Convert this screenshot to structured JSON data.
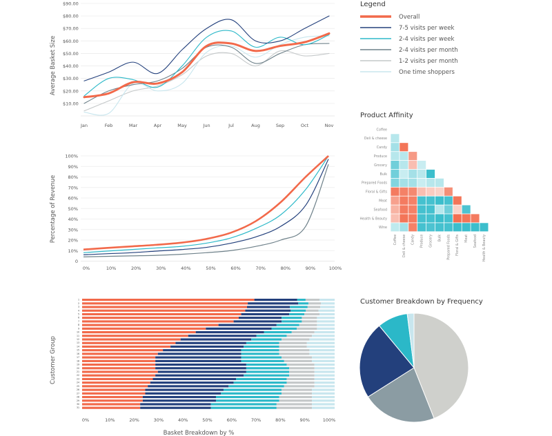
{
  "chart_data": [
    {
      "type": "line",
      "ylabel": "Average Basket Size",
      "categories": [
        "Jan",
        "Feb",
        "Mar",
        "Apr",
        "May",
        "Jun",
        "Jul",
        "Aug",
        "Sep",
        "Oct",
        "Nov"
      ],
      "ytick_labels": [
        "$10.00",
        "$20.00",
        "$30.00",
        "$40.00",
        "$50.00",
        "$60.00",
        "$70.00",
        "$80.00",
        "$90.00"
      ],
      "ylim": [
        0,
        90
      ],
      "grid": "horizontal",
      "legend_title": "Legend",
      "legend_position": "right",
      "series": [
        {
          "name": "Overall",
          "color": "#f2694a",
          "values": [
            15,
            18,
            27,
            26,
            35,
            56,
            58,
            52,
            56,
            59,
            66
          ]
        },
        {
          "name": "7-5 visits per week",
          "color": "#23407c",
          "values": [
            28,
            35,
            43,
            34,
            53,
            70,
            77,
            60,
            60,
            70,
            80
          ]
        },
        {
          "name": "2-4 visits per week",
          "color": "#2bb8c8",
          "values": [
            16,
            30,
            29,
            23,
            40,
            63,
            68,
            55,
            63,
            57,
            65
          ]
        },
        {
          "name": "2-4 visits per month",
          "color": "#6d8089",
          "values": [
            10,
            20,
            25,
            28,
            38,
            55,
            55,
            42,
            50,
            57,
            58
          ]
        },
        {
          "name": "1-2 visits per month",
          "color": "#c4c8c9",
          "values": [
            4,
            12,
            20,
            24,
            33,
            48,
            50,
            40,
            52,
            48,
            50
          ]
        },
        {
          "name": "One time shoppers",
          "color": "#c8e6ee",
          "values": [
            3,
            2,
            26,
            20,
            26,
            51,
            56,
            47,
            57,
            63,
            64
          ]
        }
      ]
    },
    {
      "type": "line",
      "ylabel": "Percentage of Revenue",
      "x": [
        0,
        10,
        20,
        30,
        40,
        50,
        60,
        70,
        80,
        90,
        100
      ],
      "xtick_labels": [
        "0%",
        "10%",
        "20%",
        "30%",
        "40%",
        "50%",
        "60%",
        "70%",
        "80%",
        "90%",
        "100%"
      ],
      "ytick_labels": [
        "0",
        "10%",
        "20%",
        "30%",
        "40%",
        "50%",
        "60%",
        "70%",
        "80%",
        "90%",
        "100%"
      ],
      "ylim": [
        0,
        100
      ],
      "grid": "horizontal",
      "series": [
        {
          "color": "#f2694a",
          "values": [
            11,
            12.5,
            14,
            15.5,
            17.5,
            21,
            27,
            38,
            56,
            80,
            100
          ]
        },
        {
          "color": "#2bb8c8",
          "values": [
            8,
            9.5,
            11,
            12.5,
            14,
            17,
            22,
            31,
            44,
            68,
            100
          ]
        },
        {
          "color": "#23407c",
          "values": [
            6,
            7,
            8,
            9.5,
            11,
            13,
            17,
            23,
            33,
            53,
            97
          ]
        },
        {
          "color": "#6d8089",
          "values": [
            4,
            4.5,
            5,
            5.5,
            6.5,
            8,
            10,
            14,
            20,
            33,
            92
          ]
        }
      ]
    },
    {
      "type": "heatmap",
      "title": "Product Affinity",
      "labels": [
        "Coffee",
        "Deli & cheese",
        "Candy",
        "Produce",
        "Grocery",
        "Bulk",
        "Prepared Foods",
        "Floral & Gifts",
        "Meat",
        "Seafood",
        "Health & Beauty",
        "Wine"
      ],
      "bottom_labels": [
        "Coffee",
        "Deli & cheese",
        "Candy",
        "Produce",
        "Grocery",
        "Bulk",
        "Prepared Foods",
        "Floral & Gifts",
        "Meat",
        "Seafood",
        "Health & Beauty"
      ],
      "values": [
        [],
        [
          0.2
        ],
        [
          0.3,
          -0.9
        ],
        [
          0.2,
          0.2,
          -0.6
        ],
        [
          0.6,
          0.2,
          -0.3,
          0.1
        ],
        [
          0.6,
          0.1,
          0.3,
          0.2,
          0.9
        ],
        [
          0.5,
          0.3,
          0.3,
          0.1,
          0.2,
          0.2
        ],
        [
          -0.85,
          -0.8,
          -0.75,
          -0.3,
          -0.2,
          -0.15,
          -0.7
        ],
        [
          -0.55,
          -0.85,
          -0.8,
          0.85,
          0.85,
          0.9,
          0.85,
          -0.9
        ],
        [
          -0.4,
          -0.85,
          -0.8,
          0.85,
          0.85,
          0.2,
          0.6,
          -0.15,
          0.8
        ],
        [
          -0.3,
          -0.9,
          -0.85,
          0.85,
          0.85,
          0.9,
          0.85,
          -0.95,
          -0.9,
          -0.85
        ],
        [
          0.15,
          0.3,
          -0.8,
          0.85,
          0.8,
          0.85,
          0.85,
          0.9,
          0.9,
          0.9,
          0.9
        ]
      ]
    },
    {
      "type": "bar",
      "orientation": "horizontal",
      "stacked": true,
      "ylabel": "Customer Group",
      "xlabel": "Basket Breakdown by %",
      "xtick_labels": [
        "0%",
        "10%",
        "20%",
        "30%",
        "40%",
        "50%",
        "60%",
        "70%",
        "80%",
        "90%",
        "100%"
      ],
      "xlim": [
        0,
        100
      ],
      "categories": [
        "1",
        "2",
        "3",
        "4",
        "5",
        "6",
        "7",
        "8",
        "9",
        "10",
        "11",
        "12",
        "13",
        "14",
        "15",
        "16",
        "17",
        "18",
        "19",
        "20",
        "21",
        "22",
        "23",
        "24",
        "25",
        "26",
        "27",
        "28",
        "29",
        "30",
        "31"
      ],
      "segment_colors": [
        "#f2694a",
        "#23407c",
        "#2bb8c8",
        "#c4c8c9",
        "#c8e6ee"
      ],
      "rows": [
        [
          68.2,
          17,
          3.3,
          5.5,
          6
        ],
        [
          65.6,
          20,
          4,
          5,
          5.4
        ],
        [
          65.3,
          17,
          7,
          5,
          5.7
        ],
        [
          64.6,
          18,
          6,
          5,
          6.4
        ],
        [
          63,
          19,
          6,
          6,
          6
        ],
        [
          62,
          17,
          8,
          6,
          7
        ],
        [
          60,
          19,
          8,
          6,
          7
        ],
        [
          54,
          23,
          9,
          7,
          7
        ],
        [
          49,
          26,
          10,
          8,
          7
        ],
        [
          45,
          27,
          11,
          9,
          8
        ],
        [
          42,
          27,
          12,
          10,
          9
        ],
        [
          39,
          28,
          12,
          11,
          10
        ],
        [
          37,
          28,
          13,
          11,
          11
        ],
        [
          35,
          29,
          14,
          11,
          11
        ],
        [
          32,
          31,
          15,
          12,
          10
        ],
        [
          30,
          33,
          15,
          12,
          10
        ],
        [
          29,
          34,
          16,
          12,
          9
        ],
        [
          29,
          34,
          17,
          11,
          9
        ],
        [
          29,
          36,
          16,
          11,
          8
        ],
        [
          29,
          36,
          17,
          10,
          8
        ],
        [
          30,
          35,
          17,
          10,
          8
        ],
        [
          29,
          35,
          18,
          10,
          8
        ],
        [
          28,
          33,
          20,
          11,
          8
        ],
        [
          27,
          33,
          21,
          11,
          8
        ],
        [
          26,
          32,
          22,
          12,
          8
        ],
        [
          25,
          31,
          23,
          12,
          9
        ],
        [
          25,
          30,
          24,
          12,
          9
        ],
        [
          24,
          29,
          25,
          13,
          9
        ],
        [
          24,
          29,
          25,
          13,
          9
        ],
        [
          23,
          28,
          26,
          14,
          9
        ],
        [
          23,
          28,
          26,
          14,
          9
        ]
      ]
    },
    {
      "type": "pie",
      "title": "Customer Breakdown by Frequency",
      "slices": [
        {
          "color": "#cfd0cc",
          "value": 44
        },
        {
          "color": "#8b9ca3",
          "value": 22
        },
        {
          "color": "#23407c",
          "value": 23
        },
        {
          "color": "#2bb8c8",
          "value": 9
        },
        {
          "color": "#c8e6ee",
          "value": 2
        }
      ]
    }
  ]
}
